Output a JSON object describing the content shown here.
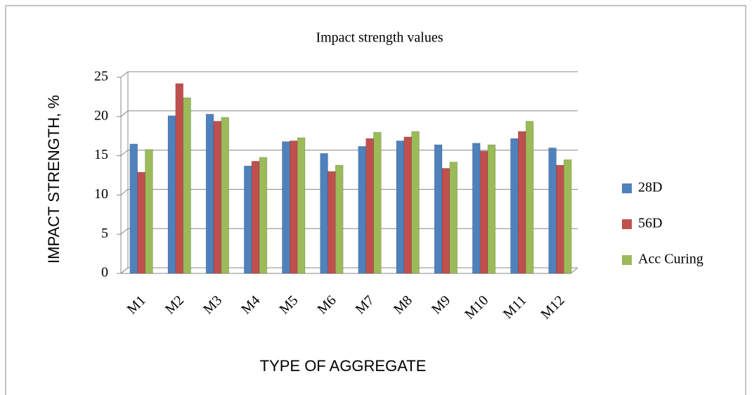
{
  "chart_data": {
    "type": "bar",
    "title": "Impact strength values",
    "x_label": "TYPE OF AGGREGATE",
    "y_label": "IMPACT STRENGTH, %",
    "categories": [
      "M1",
      "M2",
      "M3",
      "M4",
      "M5",
      "M6",
      "M7",
      "M8",
      "M9",
      "M10",
      "M11",
      "M12"
    ],
    "series": [
      {
        "name": "28D",
        "color": "#4f81bd",
        "values": [
          16.5,
          20.1,
          20.3,
          13.7,
          16.8,
          15.3,
          16.2,
          16.9,
          16.4,
          16.6,
          17.2,
          16.0
        ]
      },
      {
        "name": "56D",
        "color": "#c0504d",
        "values": [
          12.9,
          24.2,
          19.4,
          14.3,
          16.9,
          13.0,
          17.2,
          17.4,
          13.4,
          15.6,
          18.1,
          13.8
        ]
      },
      {
        "name": "Acc Curing",
        "color": "#9bbb59",
        "values": [
          15.8,
          22.4,
          19.9,
          14.8,
          17.3,
          13.8,
          18.0,
          18.1,
          14.2,
          16.4,
          19.4,
          14.5
        ]
      }
    ],
    "ylim": [
      0,
      25
    ],
    "yticks": [
      0,
      5,
      10,
      15,
      20,
      25
    ],
    "grid": true,
    "legend": "right"
  }
}
